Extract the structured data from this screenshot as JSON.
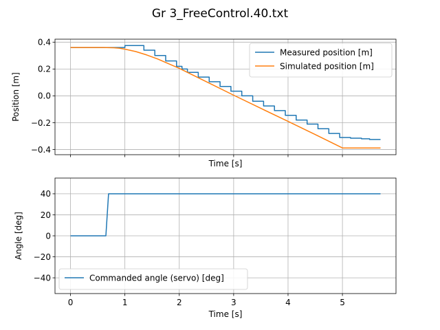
{
  "figure": {
    "title": "Gr 3_FreeControl.40.txt"
  },
  "chart_data": [
    {
      "type": "line",
      "xlabel": "Time [s]",
      "ylabel": "Position [m]",
      "xlim": [
        -0.285,
        5.985
      ],
      "ylim": [
        -0.438,
        0.422
      ],
      "xticks": [
        0,
        1,
        2,
        3,
        4,
        5
      ],
      "xtick_labels_visible": false,
      "yticks": [
        -0.4,
        -0.2,
        0.0,
        0.2,
        0.4
      ],
      "ytick_labels": [
        "−0.4",
        "−0.2",
        "0.0",
        "0.2",
        "0.4"
      ],
      "grid": true,
      "legend": "top-right",
      "series": [
        {
          "name": "Measured position [m]",
          "color": "#1f77b4",
          "step": true,
          "x": [
            0.0,
            0.95,
            1.0,
            1.35,
            1.55,
            1.75,
            1.95,
            2.05,
            2.15,
            2.35,
            2.55,
            2.75,
            2.95,
            3.15,
            3.35,
            3.55,
            3.75,
            3.95,
            4.15,
            4.35,
            4.55,
            4.75,
            4.95,
            5.15,
            5.35,
            5.5,
            5.7
          ],
          "y": [
            0.36,
            0.36,
            0.375,
            0.34,
            0.3,
            0.26,
            0.22,
            0.2,
            0.175,
            0.14,
            0.105,
            0.07,
            0.035,
            0.0,
            -0.04,
            -0.075,
            -0.11,
            -0.145,
            -0.18,
            -0.21,
            -0.245,
            -0.28,
            -0.31,
            -0.315,
            -0.32,
            -0.325,
            -0.325
          ]
        },
        {
          "name": "Simulated position [m]",
          "color": "#ff7f0e",
          "step": false,
          "x": [
            0.0,
            0.6,
            0.8,
            0.9,
            1.0,
            1.2,
            1.4,
            1.6,
            1.8,
            2.0,
            2.5,
            3.0,
            3.5,
            4.0,
            4.5,
            5.0,
            5.7
          ],
          "y": [
            0.36,
            0.36,
            0.358,
            0.355,
            0.348,
            0.33,
            0.305,
            0.275,
            0.24,
            0.205,
            0.105,
            0.005,
            -0.093,
            -0.19,
            -0.288,
            -0.388,
            -0.388
          ]
        }
      ]
    },
    {
      "type": "line",
      "xlabel": "Time [s]",
      "ylabel": "Angle [deg]",
      "xlim": [
        -0.285,
        5.985
      ],
      "ylim": [
        -55,
        55
      ],
      "xticks": [
        0,
        1,
        2,
        3,
        4,
        5
      ],
      "xtick_labels": [
        "0",
        "1",
        "2",
        "3",
        "4",
        "5"
      ],
      "yticks": [
        -40,
        -20,
        0,
        20,
        40
      ],
      "ytick_labels": [
        "−40",
        "−20",
        "0",
        "20",
        "40"
      ],
      "grid": true,
      "legend": "bottom-left",
      "series": [
        {
          "name": "Commanded angle (servo) [deg]",
          "color": "#1f77b4",
          "step": false,
          "x": [
            0.0,
            0.65,
            0.7,
            5.7
          ],
          "y": [
            0,
            0,
            40,
            40
          ]
        }
      ]
    }
  ]
}
